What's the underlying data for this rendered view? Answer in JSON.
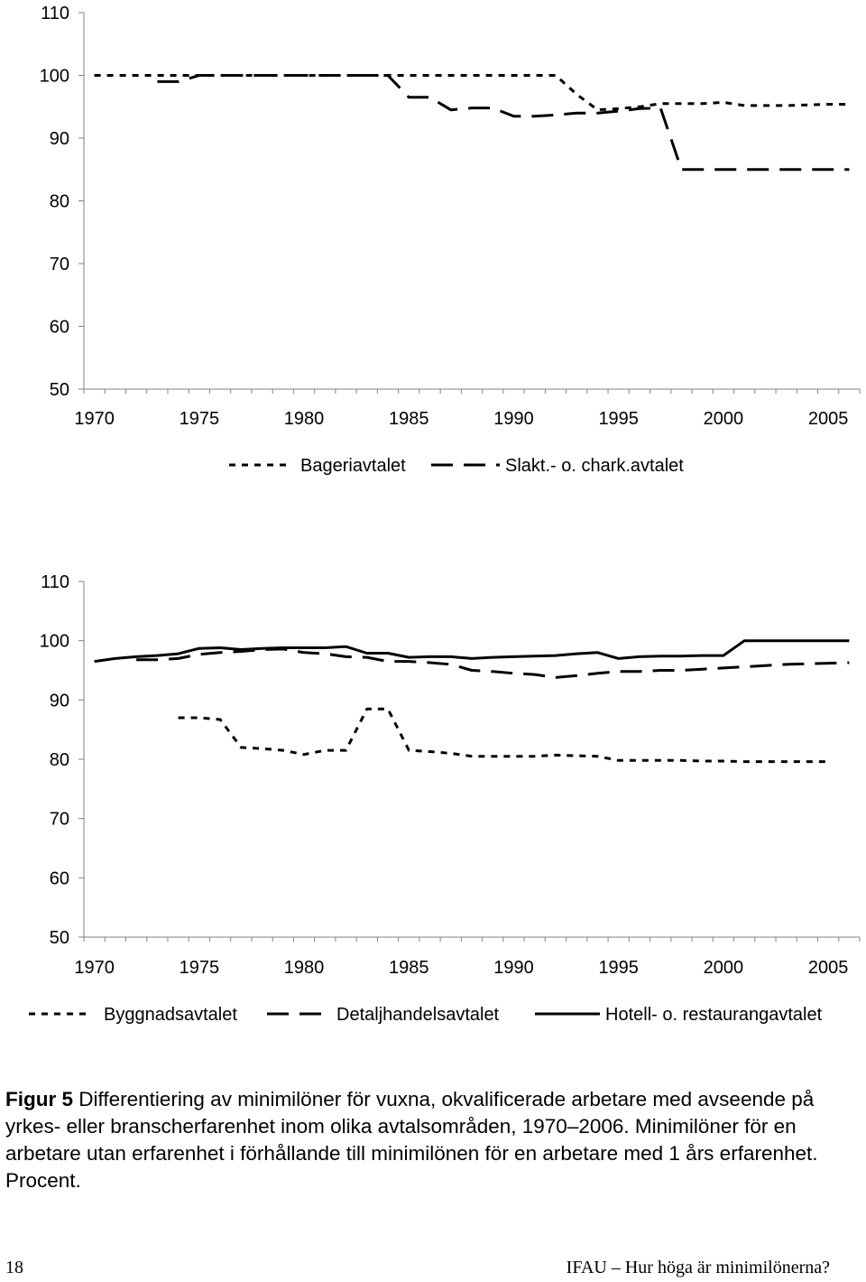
{
  "chart_data": [
    {
      "type": "line",
      "yticks": [
        "50",
        "60",
        "70",
        "80",
        "90",
        "100",
        "110"
      ],
      "xticks": [
        "1970",
        "1975",
        "1980",
        "1985",
        "1990",
        "1995",
        "2000",
        "2005"
      ],
      "ylim": [
        50,
        110
      ],
      "xlim": [
        1970,
        2006
      ],
      "grid": false,
      "legend_position": "bottom",
      "series": [
        {
          "name": "Bageriavtalet",
          "style": "short-dash",
          "x": [
            1970,
            1971,
            1972,
            1973,
            1974,
            1975,
            1976,
            1977,
            1978,
            1979,
            1980,
            1981,
            1982,
            1983,
            1984,
            1985,
            1986,
            1987,
            1988,
            1989,
            1990,
            1991,
            1992,
            1993,
            1994,
            1995,
            1996,
            1997,
            1998,
            1999,
            2000,
            2001,
            2002,
            2003,
            2004,
            2005,
            2006
          ],
          "values": [
            100,
            100,
            100,
            100,
            100,
            100,
            100,
            100,
            100,
            100,
            100,
            100,
            100,
            100,
            100,
            100,
            100,
            100,
            100,
            100,
            100,
            100,
            100,
            97,
            94.5,
            94.7,
            95,
            95.5,
            95.5,
            95.5,
            95.7,
            95.2,
            95.2,
            95.2,
            95.3,
            95.4,
            95.4
          ]
        },
        {
          "name": "Slakt.- o. chark.avtalet",
          "style": "long-dash",
          "x": [
            1973,
            1974,
            1975,
            1976,
            1977,
            1978,
            1979,
            1980,
            1981,
            1982,
            1983,
            1984,
            1985,
            1986,
            1987,
            1988,
            1989,
            1990,
            1991,
            1992,
            1993,
            1994,
            1995,
            1996,
            1997,
            1998,
            1999,
            2000,
            2001,
            2002,
            2003,
            2004,
            2005,
            2006
          ],
          "values": [
            99,
            99,
            100,
            100,
            100,
            100,
            100,
            100,
            100,
            100,
            100,
            100,
            96.5,
            96.5,
            94.5,
            94.8,
            94.8,
            93.5,
            93.5,
            93.7,
            94,
            94,
            94.3,
            94.7,
            94.8,
            85,
            85,
            85,
            85,
            85,
            85,
            85,
            85,
            85
          ]
        }
      ]
    },
    {
      "type": "line",
      "yticks": [
        "50",
        "60",
        "70",
        "80",
        "90",
        "100",
        "110"
      ],
      "xticks": [
        "1970",
        "1975",
        "1980",
        "1985",
        "1990",
        "1995",
        "2000",
        "2005"
      ],
      "ylim": [
        50,
        110
      ],
      "xlim": [
        1970,
        2006
      ],
      "grid": false,
      "legend_position": "bottom",
      "series": [
        {
          "name": "Byggnadsavtalet",
          "style": "short-dash",
          "x": [
            1974,
            1975,
            1976,
            1977,
            1978,
            1979,
            1980,
            1981,
            1982,
            1983,
            1984,
            1985,
            1986,
            1987,
            1988,
            1989,
            1990,
            1991,
            1992,
            1993,
            1994,
            1995,
            1996,
            1997,
            1998,
            1999,
            2000,
            2001,
            2002,
            2003,
            2004,
            2005
          ],
          "values": [
            87,
            87,
            86.7,
            82,
            81.8,
            81.5,
            80.8,
            81.5,
            81.5,
            88.5,
            88.5,
            81.5,
            81.3,
            81,
            80.5,
            80.5,
            80.5,
            80.5,
            80.7,
            80.6,
            80.5,
            79.8,
            79.8,
            79.8,
            79.8,
            79.7,
            79.7,
            79.6,
            79.6,
            79.6,
            79.6,
            79.6
          ]
        },
        {
          "name": "Detaljhandelsavtalet",
          "style": "long-dash",
          "x": [
            1972,
            1973,
            1974,
            1975,
            1976,
            1977,
            1978,
            1979,
            1980,
            1981,
            1982,
            1983,
            1984,
            1985,
            1986,
            1987,
            1988,
            1989,
            1990,
            1991,
            1992,
            1993,
            1994,
            1995,
            1996,
            1997,
            1998,
            1999,
            2000,
            2001,
            2002,
            2003,
            2004,
            2005,
            2006
          ],
          "values": [
            96.8,
            96.8,
            97,
            97.7,
            98,
            98.2,
            98.5,
            98.6,
            98,
            97.8,
            97.3,
            97.2,
            96.5,
            96.5,
            96.3,
            96,
            95,
            94.8,
            94.5,
            94.3,
            93.8,
            94.1,
            94.5,
            94.8,
            94.8,
            95,
            95,
            95.2,
            95.4,
            95.6,
            95.8,
            96,
            96.1,
            96.2,
            96.3
          ]
        },
        {
          "name": "Hotell- o. restaurangavtalet",
          "style": "solid",
          "x": [
            1970,
            1971,
            1972,
            1973,
            1974,
            1975,
            1976,
            1977,
            1978,
            1979,
            1980,
            1981,
            1982,
            1983,
            1984,
            1985,
            1986,
            1987,
            1988,
            1989,
            1990,
            1991,
            1992,
            1993,
            1994,
            1995,
            1996,
            1997,
            1998,
            1999,
            2000,
            2001,
            2002,
            2003,
            2004,
            2005,
            2006
          ],
          "values": [
            96.5,
            97,
            97.3,
            97.5,
            97.8,
            98.7,
            98.8,
            98.5,
            98.7,
            98.8,
            98.8,
            98.8,
            99,
            97.9,
            97.9,
            97.2,
            97.3,
            97.3,
            97,
            97.2,
            97.3,
            97.4,
            97.5,
            97.8,
            98,
            97,
            97.3,
            97.4,
            97.4,
            97.5,
            97.5,
            100,
            100,
            100,
            100,
            100,
            100
          ]
        }
      ]
    }
  ],
  "caption": {
    "label": "Figur 5",
    "text": " Differentiering av minimilöner för vuxna, okvalificerade arbetare med avseende på yrkes- eller branscherfarenhet inom olika avtalsområden, 1970–2006. Minimilöner för en arbetare utan erfarenhet i förhållande till minimilönen för en arbetare med 1 års erfarenhet. Procent."
  },
  "footer": {
    "page_number": "18",
    "title": "IFAU – Hur höga är minimilönerna?"
  },
  "colors": {
    "line": "#000000",
    "axis": "#808080",
    "background": "#ffffff"
  }
}
